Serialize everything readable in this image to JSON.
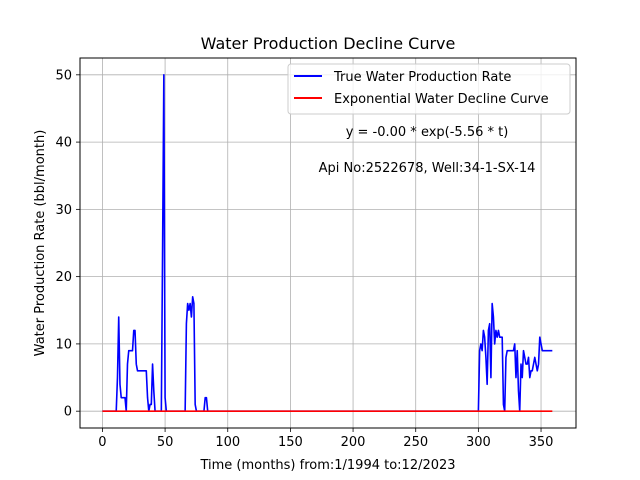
{
  "chart_data": {
    "type": "line",
    "title": "Water Production Decline Curve",
    "xlabel": "Time (months) from:1/1994 to:12/2023",
    "ylabel": "Water Production Rate (bbl/month)",
    "xlim": [
      -17.9,
      377.9
    ],
    "ylim": [
      -2.5,
      52.5
    ],
    "xticks": [
      0,
      50,
      100,
      150,
      200,
      250,
      300,
      350
    ],
    "yticks": [
      0,
      10,
      20,
      30,
      40,
      50
    ],
    "grid": true,
    "legend_position": "upper-right",
    "annotations": [
      "y = -0.00 * exp(-5.56 * t)",
      "Api No:2522678, Well:34-1-SX-14"
    ],
    "series": [
      {
        "name": "True Water Production Rate",
        "color": "#0000ff",
        "x": [
          0,
          11,
          12,
          13,
          14,
          15,
          16,
          17,
          18,
          19,
          20,
          21,
          22,
          23,
          24,
          25,
          26,
          27,
          28,
          29,
          30,
          31,
          32,
          33,
          34,
          35,
          36,
          37,
          38,
          39,
          40,
          41,
          42,
          43,
          44,
          45,
          46,
          47,
          48,
          49,
          50,
          51,
          52,
          53,
          54,
          55,
          56,
          57,
          58,
          59,
          60,
          61,
          62,
          63,
          64,
          65,
          66,
          67,
          68,
          69,
          70,
          71,
          72,
          73,
          74,
          75,
          76,
          77,
          78,
          79,
          80,
          81,
          82,
          83,
          84,
          300,
          301,
          302,
          303,
          304,
          305,
          306,
          307,
          308,
          309,
          310,
          311,
          312,
          313,
          314,
          315,
          316,
          317,
          318,
          319,
          320,
          321,
          322,
          323,
          324,
          325,
          326,
          327,
          328,
          329,
          330,
          331,
          332,
          333,
          334,
          335,
          336,
          337,
          338,
          339,
          340,
          341,
          342,
          343,
          344,
          345,
          346,
          347,
          348,
          349,
          350,
          351,
          352,
          353,
          354,
          355,
          356,
          357,
          358,
          359
        ],
        "values": [
          0,
          0,
          5,
          14,
          4,
          2,
          2,
          2,
          2,
          0,
          7,
          9,
          9,
          9,
          9,
          12,
          12,
          7,
          6,
          6,
          6,
          6,
          6,
          6,
          6,
          6,
          2,
          0,
          1,
          1,
          7,
          3,
          0,
          0,
          0,
          0,
          0,
          0,
          24,
          50,
          2,
          0,
          0,
          0,
          0,
          0,
          0,
          0,
          0,
          0,
          0,
          0,
          0,
          0,
          0,
          0,
          0,
          13,
          16,
          15,
          16,
          14,
          17,
          16,
          1,
          0,
          0,
          0,
          0,
          0,
          0,
          0,
          2,
          2,
          0,
          0,
          9,
          10,
          9,
          12,
          11,
          8,
          4,
          12,
          13,
          5,
          16,
          14,
          10,
          12,
          11,
          12,
          11,
          11,
          11,
          1,
          0,
          8,
          9,
          9,
          9,
          9,
          9,
          9,
          10,
          5,
          9,
          3,
          0,
          7,
          5,
          9,
          8,
          7,
          7,
          8,
          5,
          6,
          6,
          7,
          8,
          7,
          6,
          7,
          11,
          10,
          9,
          9,
          9,
          9,
          9,
          9,
          9,
          9,
          9
        ]
      },
      {
        "name": "Exponential Water Decline Curve",
        "color": "#ff0000",
        "x": [
          0,
          359
        ],
        "values": [
          0,
          0
        ]
      }
    ]
  }
}
